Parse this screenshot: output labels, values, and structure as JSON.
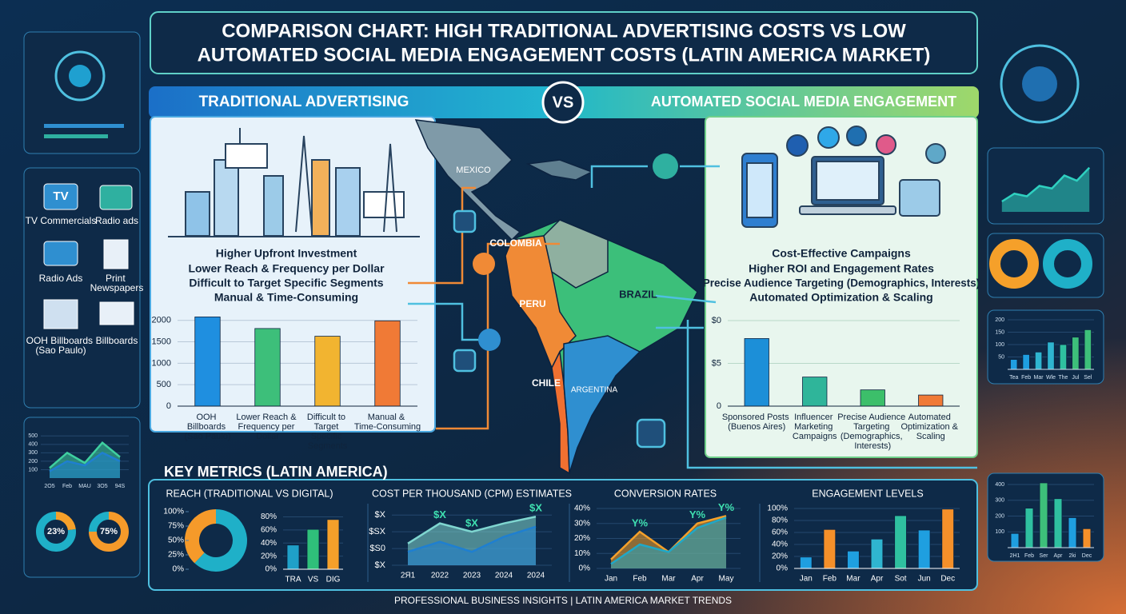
{
  "title": [
    "COMPARISON CHART: HIGH TRADITIONAL ADVERTISING COSTS VS LOW",
    "AUTOMATED SOCIAL MEDIA ENGAGEMENT COSTS (LATIN AMERICA MARKET)"
  ],
  "vs": "VS",
  "traditional": {
    "header": "TRADITIONAL ADVERTISING",
    "points": [
      "Higher Upfront Investment",
      "Lower Reach & Frequency per Dollar",
      "Difficult to Target Specific Segments",
      "Manual & Time-Consuming"
    ]
  },
  "social": {
    "header": "AUTOMATED SOCIAL MEDIA ENGAGEMENT",
    "points": [
      "Cost-Effective Campaigns",
      "Higher ROI and Engagement Rates",
      "Precise Audience Targeting (Demographics, Interests)",
      "Automated Optimization & Scaling"
    ]
  },
  "channel_icon_text": "TV",
  "channels": [
    "TV Commercials",
    "Radio ads",
    "Radio Ads",
    "Print Newspapers",
    "OOH Billboards (Sao Paulo)",
    "Billboards"
  ],
  "map_labels": [
    "MEXICO",
    "COLOMBIA",
    "PERU",
    "BRAZIL",
    "CHILE",
    "ARGENTINA"
  ],
  "metrics": {
    "title": "KEY METRICS (LATIN AMERICA)",
    "sections": [
      "REACH (TRADITIONAL VS DIGITAL)",
      "COST PER THOUSAND (CPM) ESTIMATES",
      "CONVERSION RATES",
      "ENGAGEMENT LEVELS"
    ]
  },
  "footer": "PROFESSIONAL BUSINESS INSIGHTS | LATIN AMERICA MARKET TRENDS",
  "chart_data": [
    {
      "type": "bar",
      "categories": [
        "OOH Billboards (Sao Paulo)",
        "Lower Reach & Frequency per Dollar",
        "Difficult to Target Specific Segments",
        "Manual & Time-Consuming"
      ],
      "values": [
        2080,
        1810,
        1630,
        1990
      ],
      "colors": [
        "#1f8fe0",
        "#3dbf7a",
        "#f2b430",
        "#f07a36"
      ],
      "ylim": [
        0,
        2200
      ],
      "yticks": [
        0,
        500,
        1000,
        1500,
        2000
      ]
    },
    {
      "type": "bar",
      "categories": [
        "Sponsored Posts (Buenos Aires)",
        "Influencer Marketing Campaigns",
        "Precise Audience Targeting (Demographics, Interests)",
        "Automated Optimization & Scaling"
      ],
      "values": [
        7.9,
        3.4,
        1.9,
        1.3
      ],
      "colors": [
        "#1c8fd8",
        "#2fb59a",
        "#3cbf6a",
        "#f07a36"
      ],
      "ylim": [
        0,
        10
      ],
      "yticks": [
        0,
        {
          "value": 5,
          "label": "$5"
        },
        {
          "value": 10,
          "label": "$0"
        }
      ]
    },
    {
      "type": "donut",
      "values": [
        62,
        38
      ],
      "colors": [
        "#1fb0c8",
        "#f59a2a"
      ],
      "ylim": [
        0,
        100
      ],
      "yticks": [
        {
          "value": 0,
          "label": "0%"
        },
        {
          "value": 25,
          "label": "25%"
        },
        {
          "value": 50,
          "label": "50%"
        },
        {
          "value": 75,
          "label": "75%"
        },
        {
          "value": 100,
          "label": "100%"
        }
      ]
    },
    {
      "type": "bar",
      "categories": [
        "TRA",
        "VS",
        "DIG"
      ],
      "values": [
        37,
        61,
        76
      ],
      "colors": [
        "#1fa0c8",
        "#2fbf7a",
        "#f5a02a"
      ],
      "ylim": [
        0,
        88
      ],
      "yticks": [
        {
          "value": 0,
          "label": "0%"
        },
        {
          "value": 20,
          "label": "20%"
        },
        {
          "value": 40,
          "label": "40%"
        },
        {
          "value": 60,
          "label": "60%"
        },
        {
          "value": 80,
          "label": "80%"
        }
      ]
    },
    {
      "type": "area",
      "categories": [
        "2Я1",
        "2022",
        "2023",
        "2024",
        "2024"
      ],
      "ylim": [
        0,
        3.2
      ],
      "yticks": [
        {
          "value": 0,
          "label": "$X"
        },
        {
          "value": 1,
          "label": "$S0"
        },
        {
          "value": 2,
          "label": "$SX"
        },
        {
          "value": 3,
          "label": "$X"
        }
      ],
      "series": [
        {
          "color": "#7fd6d0",
          "values": [
            1.3,
            2.5,
            2.0,
            2.5,
            2.9
          ]
        },
        {
          "color": "#1f7fd0",
          "values": [
            0.8,
            1.4,
            0.8,
            1.7,
            2.3
          ]
        }
      ],
      "annotations": [
        "$X",
        "$X",
        "$X"
      ]
    },
    {
      "type": "area",
      "categories": [
        "Jan",
        "Feb",
        "Mar",
        "Apr",
        "May"
      ],
      "ylim": [
        0,
        40
      ],
      "yticks": [
        {
          "value": 0,
          "label": "0%"
        },
        {
          "value": 10,
          "label": "10%"
        },
        {
          "value": 20,
          "label": "20%"
        },
        {
          "value": 30,
          "label": "30%"
        },
        {
          "value": 40,
          "label": "40%"
        }
      ],
      "series": [
        {
          "color": "#f5a02a",
          "values": [
            6,
            24.5,
            11,
            30,
            35
          ]
        },
        {
          "color": "#1fa8c8",
          "values": [
            3,
            16,
            11,
            27,
            34
          ]
        }
      ],
      "annotations": [
        "Y%",
        "Y%",
        "Y%"
      ]
    },
    {
      "type": "bar",
      "categories": [
        "Jan",
        "Feb",
        "Mar",
        "Apr",
        "Sot",
        "Jun",
        "Dec"
      ],
      "values": [
        19,
        65,
        29,
        49,
        88,
        64,
        99
      ],
      "colors": [
        "#1f9fe0",
        "#f5902a",
        "#1f9fe0",
        "#2fb5d0",
        "#2fc0a0",
        "#1f9fe0",
        "#f5902a"
      ],
      "ylim": [
        0,
        100
      ],
      "yticks": [
        {
          "value": 0,
          "label": "0%"
        },
        {
          "value": 20,
          "label": "20%"
        },
        {
          "value": 40,
          "label": "40%"
        },
        {
          "value": 60,
          "label": "60%"
        },
        {
          "value": 80,
          "label": "80%"
        },
        {
          "value": 100,
          "label": "100%"
        }
      ]
    },
    {
      "type": "area",
      "categories": [
        "2O5",
        "Feb",
        "MAU",
        "3O5",
        "94S"
      ],
      "ylim": [
        0,
        550
      ],
      "yticks": [
        100,
        200,
        300,
        400,
        500
      ],
      "series": [
        {
          "color": "#3fd0a0",
          "values": [
            120,
            300,
            180,
            420,
            250
          ]
        },
        {
          "color": "#1f7fd0",
          "values": [
            80,
            200,
            150,
            300,
            200
          ]
        }
      ]
    },
    {
      "type": "donut",
      "values": [
        23,
        77
      ],
      "value_labels": [
        "23%",
        null
      ],
      "colors": [
        "#f5a02a",
        "#1fb0c8"
      ]
    },
    {
      "type": "donut",
      "values": [
        75,
        25
      ],
      "value_labels": [
        "75%",
        null
      ],
      "colors": [
        "#f59a2a",
        "#1fb0c8"
      ]
    },
    {
      "type": "bar",
      "categories": [
        "Tea",
        "Feb",
        "Mar",
        "Wle",
        "The",
        "Jul",
        "Sel"
      ],
      "values": [
        40,
        60,
        70,
        110,
        100,
        130,
        160
      ],
      "colors": [
        "#1f9fe0",
        "#1f9fe0",
        "#2fb5d0",
        "#2fb5d0",
        "#2fc0a0",
        "#3dbf7a",
        "#3dbf7a"
      ],
      "ylim": [
        0,
        200
      ],
      "yticks": [
        50,
        100,
        150,
        200
      ]
    },
    {
      "type": "bar",
      "categories": [
        "2H1",
        "Feb",
        "Ser",
        "Apr",
        "2ki",
        "Dec"
      ],
      "values": [
        90,
        250,
        410,
        310,
        190,
        120
      ],
      "colors": [
        "#1f9fe0",
        "#2fc0a0",
        "#3dbf7a",
        "#2fc0a0",
        "#1f9fe0",
        "#f5902a"
      ],
      "ylim": [
        0,
        420
      ],
      "yticks": [
        100,
        200,
        300,
        400
      ]
    },
    {
      "type": "area",
      "ylim": [
        0,
        100
      ],
      "series": [
        {
          "color": "#2fd0c0",
          "values": [
            20,
            35,
            30,
            50,
            45,
            70,
            60,
            85
          ]
        }
      ]
    }
  ]
}
